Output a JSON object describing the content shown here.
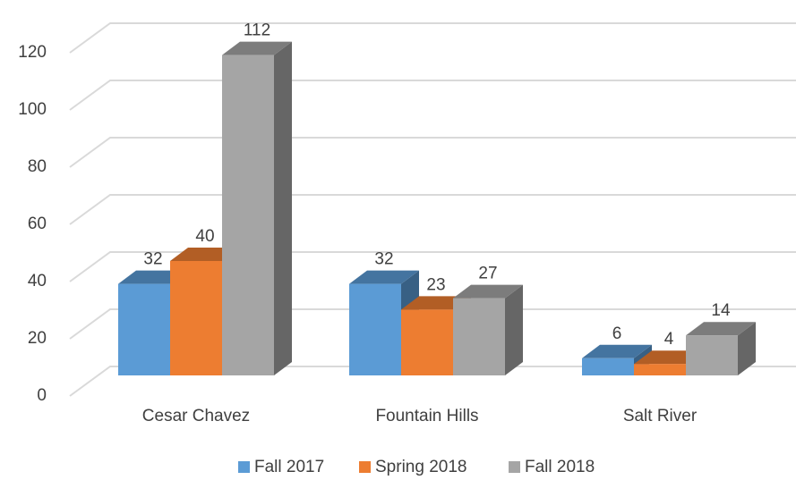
{
  "chart_data": {
    "type": "bar3d",
    "categories": [
      "Cesar Chavez",
      "Fountain Hills",
      "Salt River"
    ],
    "series": [
      {
        "name": "Fall 2017",
        "color": "#5b9bd5",
        "values": [
          32,
          32,
          6
        ]
      },
      {
        "name": "Spring 2018",
        "color": "#ed7d31",
        "values": [
          40,
          23,
          4
        ]
      },
      {
        "name": "Fall 2018",
        "color": "#a5a5a5",
        "values": [
          112,
          27,
          14
        ]
      }
    ],
    "ylim": [
      0,
      120
    ],
    "yticks": [
      0,
      20,
      40,
      60,
      80,
      100,
      120
    ],
    "grid": true,
    "legend": "bottom"
  }
}
